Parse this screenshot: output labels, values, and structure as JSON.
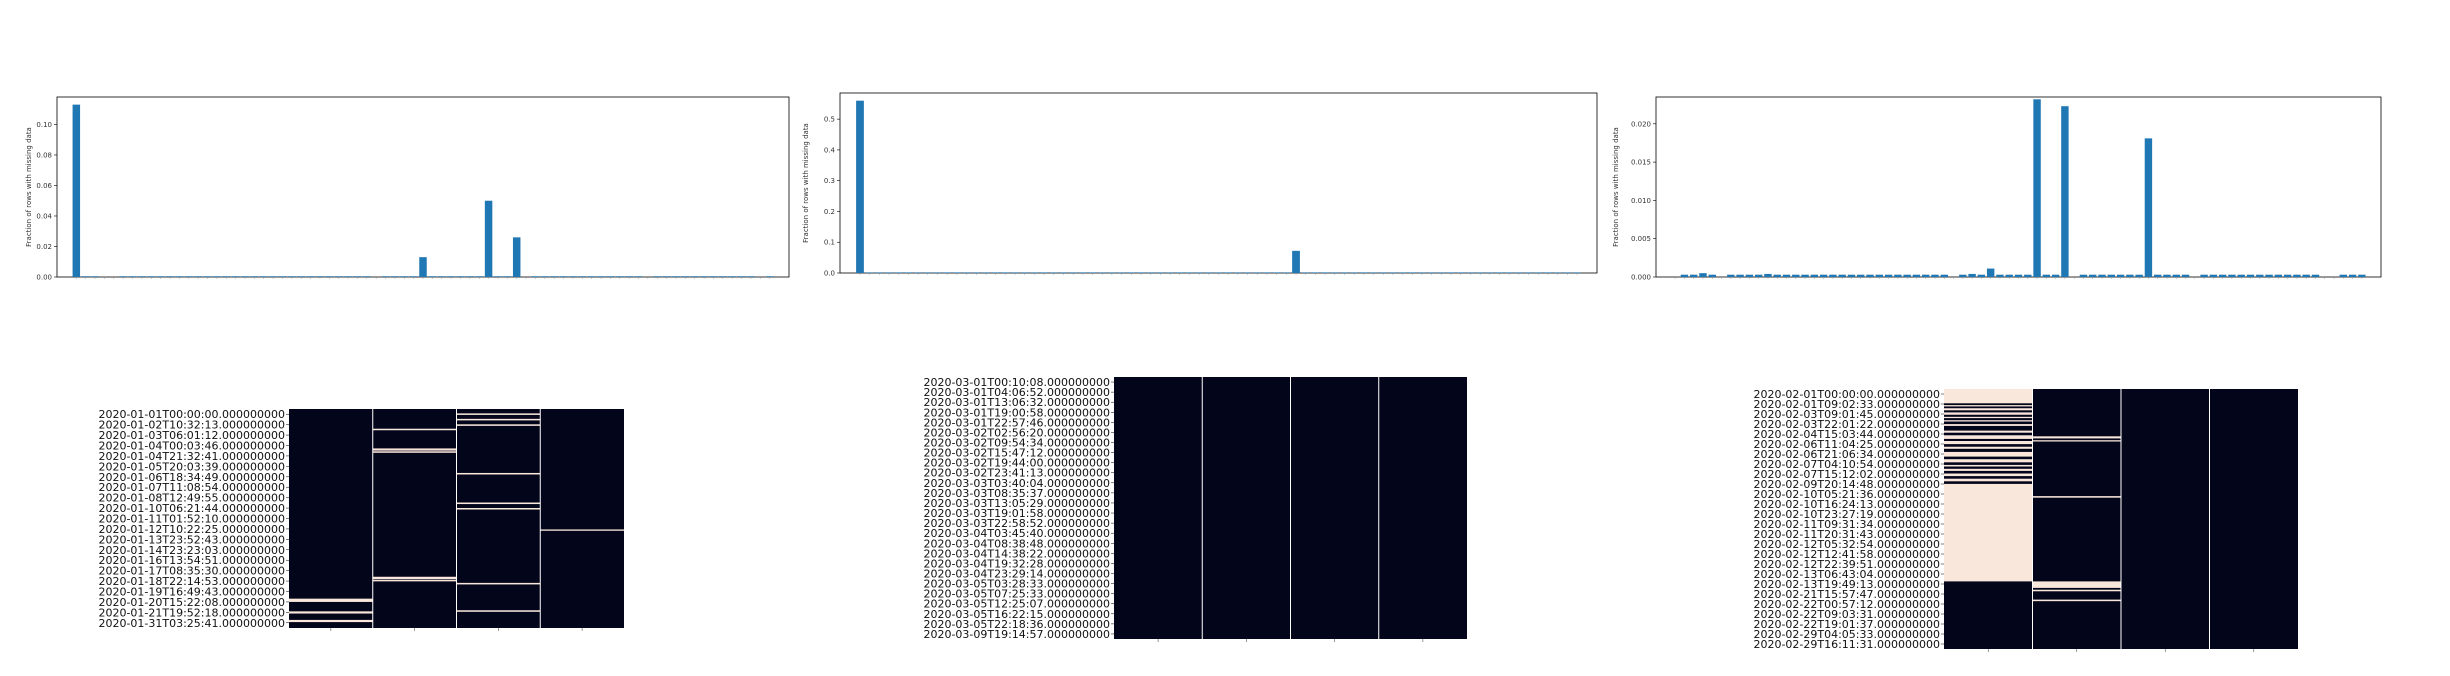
{
  "colors": {
    "bar": "#1f77b4",
    "heat_present": "#03051a",
    "heat_missing": "#fae7dc",
    "cell_divider": "#ffffff"
  },
  "chart_data": [
    {
      "type": "bar",
      "panel": "top-left",
      "ylabel": "Fraction of rows with missing data",
      "ylim": [
        0,
        0.118
      ],
      "yticks": [
        "0.00",
        "0.02",
        "0.04",
        "0.06",
        "0.08",
        "0.10"
      ],
      "ytick_values": [
        0,
        0.02,
        0.04,
        0.06,
        0.08,
        0.1
      ],
      "n_bars": 75,
      "values": [
        0.113,
        0.0005,
        0.0005,
        0,
        0,
        0.0005,
        0.0005,
        0.0005,
        0.0005,
        0.0005,
        0.0005,
        0.0005,
        0.0005,
        0.0005,
        0.0005,
        0.0005,
        0.0005,
        0.0005,
        0.0005,
        0.0005,
        0.0005,
        0.0005,
        0.0005,
        0.0005,
        0.0005,
        0.0005,
        0.0005,
        0.0005,
        0.0005,
        0.0005,
        0.0005,
        0.0005,
        0,
        0.0005,
        0.0005,
        0.0005,
        0.0005,
        0.013,
        0.0005,
        0.0005,
        0.0005,
        0.0005,
        0.0005,
        0.0005,
        0.05,
        0.0005,
        0.0005,
        0.026,
        0,
        0.0005,
        0.0005,
        0.0005,
        0.0005,
        0.0005,
        0.0005,
        0.0005,
        0.0005,
        0.0005,
        0.0005,
        0.0005,
        0.0005,
        0,
        0.0005,
        0.0005,
        0.0005,
        0.0005,
        0.0005,
        0.0005,
        0.0005,
        0.0005,
        0.0005,
        0.0005,
        0.0005,
        0,
        0.0005
      ]
    },
    {
      "type": "bar",
      "panel": "top-middle",
      "ylabel": "Fraction of rows with missing data",
      "ylim": [
        0,
        0.585
      ],
      "yticks": [
        "0.0",
        "0.1",
        "0.2",
        "0.3",
        "0.4",
        "0.5"
      ],
      "ytick_values": [
        0,
        0.1,
        0.2,
        0.3,
        0.4,
        0.5
      ],
      "n_bars": 75,
      "values": [
        0.56,
        0.002,
        0.002,
        0.002,
        0.002,
        0.002,
        0.002,
        0.002,
        0.002,
        0.002,
        0.002,
        0.002,
        0.002,
        0.002,
        0.002,
        0.002,
        0.002,
        0.002,
        0.002,
        0.002,
        0.002,
        0.002,
        0.002,
        0.002,
        0.002,
        0.002,
        0.002,
        0.002,
        0.002,
        0.002,
        0.002,
        0.002,
        0.002,
        0.002,
        0.002,
        0.002,
        0.002,
        0.002,
        0.002,
        0.002,
        0.002,
        0.002,
        0.002,
        0.002,
        0.002,
        0.072,
        0.002,
        0.002,
        0.002,
        0.002,
        0.002,
        0.002,
        0.002,
        0.002,
        0.002,
        0.002,
        0.002,
        0.002,
        0.002,
        0.002,
        0.002,
        0.002,
        0.002,
        0.002,
        0.002,
        0.002,
        0.002,
        0.002,
        0.002,
        0.002,
        0.002,
        0.002,
        0.002,
        0.002,
        0.002
      ]
    },
    {
      "type": "bar",
      "panel": "top-right",
      "ylabel": "Fraction of rows with missing data",
      "ylim": [
        0,
        0.0235
      ],
      "yticks": [
        "0.000",
        "0.005",
        "0.010",
        "0.015",
        "0.020"
      ],
      "ytick_values": [
        0,
        0.005,
        0.01,
        0.015,
        0.02
      ],
      "n_bars": 75,
      "values": [
        0,
        0.0003,
        0.0003,
        0.0005,
        0.0003,
        0,
        0.0003,
        0.0003,
        0.0003,
        0.0003,
        0.0004,
        0.0003,
        0.0003,
        0.0003,
        0.0003,
        0.0003,
        0.0003,
        0.0003,
        0.0003,
        0.0003,
        0.0003,
        0.0003,
        0.0003,
        0.0003,
        0.0003,
        0.0003,
        0.0003,
        0.0003,
        0.0003,
        0.0003,
        0,
        0.0003,
        0.0004,
        0.0003,
        0.0011,
        0.0003,
        0.0003,
        0.0003,
        0.0003,
        0.0232,
        0.0003,
        0.0003,
        0.0223,
        0,
        0.0003,
        0.0003,
        0.0003,
        0.0003,
        0.0003,
        0.0003,
        0.0003,
        0.0181,
        0.0003,
        0.0003,
        0.0003,
        0.0003,
        0,
        0.0003,
        0.0003,
        0.0003,
        0.0003,
        0.0003,
        0.0003,
        0.0003,
        0.0003,
        0.0003,
        0.0003,
        0.0003,
        0.0003,
        0.0003,
        0,
        0,
        0.0003,
        0.0003,
        0.0003
      ]
    },
    {
      "type": "heatmap",
      "panel": "bottom-left",
      "n_columns": 4,
      "n_rows": 32,
      "row_labels": [
        "2020-01-01T00:00:00.000000000",
        "2020-01-02T10:32:13.000000000",
        "2020-01-03T06:01:12.000000000",
        "2020-01-04T00:03:46.000000000",
        "2020-01-04T21:32:41.000000000",
        "2020-01-05T20:03:39.000000000",
        "2020-01-06T18:34:49.000000000",
        "2020-01-07T11:08:54.000000000",
        "2020-01-08T12:49:55.000000000",
        "2020-01-10T06:21:44.000000000",
        "2020-01-11T01:52:10.000000000",
        "2020-01-12T10:22:25.000000000",
        "2020-01-13T23:52:43.000000000",
        "2020-01-14T23:23:03.000000000",
        "2020-01-16T13:54:51.000000000",
        "2020-01-17T08:35:30.000000000",
        "2020-01-18T22:14:53.000000000",
        "2020-01-19T16:49:43.000000000",
        "2020-01-20T15:22:08.000000000",
        "2020-01-21T19:52:18.000000000",
        "2020-01-31T03:25:41.000000000"
      ],
      "missing_bands": [
        {
          "col": 0,
          "from": 0.866,
          "to": 0.881
        },
        {
          "col": 0,
          "from": 0.924,
          "to": 0.934
        },
        {
          "col": 0,
          "from": 0.963,
          "to": 0.973
        },
        {
          "col": 1,
          "from": 0.09,
          "to": 0.097
        },
        {
          "col": 1,
          "from": 0.18,
          "to": 0.19
        },
        {
          "col": 1,
          "from": 0.193,
          "to": 0.2
        },
        {
          "col": 1,
          "from": 0.766,
          "to": 0.777
        },
        {
          "col": 1,
          "from": 0.78,
          "to": 0.787
        },
        {
          "col": 2,
          "from": 0.02,
          "to": 0.027
        },
        {
          "col": 2,
          "from": 0.045,
          "to": 0.052
        },
        {
          "col": 2,
          "from": 0.07,
          "to": 0.077
        },
        {
          "col": 2,
          "from": 0.292,
          "to": 0.299
        },
        {
          "col": 2,
          "from": 0.427,
          "to": 0.434
        },
        {
          "col": 2,
          "from": 0.452,
          "to": 0.459
        },
        {
          "col": 2,
          "from": 0.794,
          "to": 0.801
        },
        {
          "col": 2,
          "from": 0.919,
          "to": 0.926
        },
        {
          "col": 3,
          "from": 0.55,
          "to": 0.556
        }
      ]
    },
    {
      "type": "heatmap",
      "panel": "bottom-middle",
      "n_columns": 4,
      "n_rows": 28,
      "row_labels": [
        "2020-03-01T00:10:08.000000000",
        "2020-03-01T04:06:52.000000000",
        "2020-03-01T13:06:32.000000000",
        "2020-03-01T19:00:58.000000000",
        "2020-03-01T22:57:46.000000000",
        "2020-03-02T02:56:20.000000000",
        "2020-03-02T09:54:34.000000000",
        "2020-03-02T15:47:12.000000000",
        "2020-03-02T19:44:00.000000000",
        "2020-03-02T23:41:13.000000000",
        "2020-03-03T03:40:04.000000000",
        "2020-03-03T08:35:37.000000000",
        "2020-03-03T13:05:29.000000000",
        "2020-03-03T19:01:58.000000000",
        "2020-03-03T22:58:52.000000000",
        "2020-03-04T03:45:40.000000000",
        "2020-03-04T08:38:48.000000000",
        "2020-03-04T14:38:22.000000000",
        "2020-03-04T19:32:28.000000000",
        "2020-03-04T23:29:14.000000000",
        "2020-03-05T03:28:33.000000000",
        "2020-03-05T07:25:33.000000000",
        "2020-03-05T12:25:07.000000000",
        "2020-03-05T16:22:15.000000000",
        "2020-03-05T22:18:36.000000000",
        "2020-03-09T19:14:57.000000000"
      ],
      "missing_bands": []
    },
    {
      "type": "heatmap",
      "panel": "bottom-right",
      "n_columns": 4,
      "n_rows": 30,
      "row_labels": [
        "2020-02-01T00:00:00.000000000",
        "2020-02-01T09:02:33.000000000",
        "2020-02-03T09:01:45.000000000",
        "2020-02-03T22:01:22.000000000",
        "2020-02-04T15:03:44.000000000",
        "2020-02-06T11:04:25.000000000",
        "2020-02-06T21:06:34.000000000",
        "2020-02-07T04:10:54.000000000",
        "2020-02-07T15:12:02.000000000",
        "2020-02-09T20:14:48.000000000",
        "2020-02-10T05:21:36.000000000",
        "2020-02-10T16:24:13.000000000",
        "2020-02-10T23:27:19.000000000",
        "2020-02-11T09:31:34.000000000",
        "2020-02-11T20:31:43.000000000",
        "2020-02-12T05:32:54.000000000",
        "2020-02-12T12:41:58.000000000",
        "2020-02-12T22:39:51.000000000",
        "2020-02-13T06:43:04.000000000",
        "2020-02-13T19:49:13.000000000",
        "2020-02-21T15:57:47.000000000",
        "2020-02-22T00:57:12.000000000",
        "2020-02-22T09:03:31.000000000",
        "2020-02-22T19:01:37.000000000",
        "2020-02-29T04:05:33.000000000",
        "2020-02-29T16:11:31.000000000"
      ],
      "missing_bands": [
        {
          "col": 0,
          "from": 0.0,
          "to": 0.055
        },
        {
          "col": 0,
          "from": 0.062,
          "to": 0.067
        },
        {
          "col": 0,
          "from": 0.074,
          "to": 0.082
        },
        {
          "col": 0,
          "from": 0.09,
          "to": 0.099
        },
        {
          "col": 0,
          "from": 0.107,
          "to": 0.112
        },
        {
          "col": 0,
          "from": 0.12,
          "to": 0.125
        },
        {
          "col": 0,
          "from": 0.135,
          "to": 0.142
        },
        {
          "col": 0,
          "from": 0.16,
          "to": 0.168
        },
        {
          "col": 0,
          "from": 0.178,
          "to": 0.192
        },
        {
          "col": 0,
          "from": 0.2,
          "to": 0.212
        },
        {
          "col": 0,
          "from": 0.222,
          "to": 0.23
        },
        {
          "col": 0,
          "from": 0.242,
          "to": 0.26
        },
        {
          "col": 0,
          "from": 0.27,
          "to": 0.282
        },
        {
          "col": 0,
          "from": 0.292,
          "to": 0.298
        },
        {
          "col": 0,
          "from": 0.307,
          "to": 0.315
        },
        {
          "col": 0,
          "from": 0.325,
          "to": 0.335
        },
        {
          "col": 0,
          "from": 0.345,
          "to": 0.355
        },
        {
          "col": 0,
          "from": 0.365,
          "to": 0.74
        },
        {
          "col": 1,
          "from": 0.182,
          "to": 0.19
        },
        {
          "col": 1,
          "from": 0.197,
          "to": 0.202
        },
        {
          "col": 1,
          "from": 0.412,
          "to": 0.418
        },
        {
          "col": 1,
          "from": 0.74,
          "to": 0.765
        },
        {
          "col": 1,
          "from": 0.772,
          "to": 0.778
        },
        {
          "col": 1,
          "from": 0.81,
          "to": 0.816
        }
      ]
    }
  ]
}
